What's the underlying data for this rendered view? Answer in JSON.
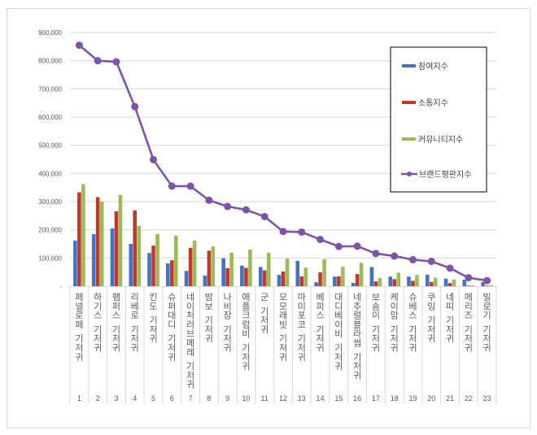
{
  "chart_data": {
    "type": "bar",
    "combo": "clustered bars with line overlay",
    "title": "",
    "xlabel": "",
    "ylabel": "",
    "ylim": [
      0,
      900000
    ],
    "yticks": [
      0,
      100000,
      200000,
      300000,
      400000,
      500000,
      600000,
      700000,
      800000,
      900000
    ],
    "ytick_labels": [
      "-",
      "100,000",
      "200,000",
      "300,000",
      "400,000",
      "500,000",
      "600,000",
      "700,000",
      "800,000",
      "900,000"
    ],
    "grid": true,
    "legend_position": "right-inside",
    "categories": [
      {
        "rank": "1",
        "name": "페넬로페 기저귀"
      },
      {
        "rank": "2",
        "name": "하기스 기저귀"
      },
      {
        "rank": "3",
        "name": "팸퍼스 기저귀"
      },
      {
        "rank": "4",
        "name": "리베로 기저귀"
      },
      {
        "rank": "5",
        "name": "킨도 기저귀"
      },
      {
        "rank": "6",
        "name": "슈퍼대디 기저귀"
      },
      {
        "rank": "7",
        "name": "네이처러브메레 기저귀"
      },
      {
        "rank": "8",
        "name": "밤보 기저귀"
      },
      {
        "rank": "9",
        "name": "나비잠 기저귀"
      },
      {
        "rank": "10",
        "name": "애플크럼비 기저귀"
      },
      {
        "rank": "11",
        "name": "군 기저귀"
      },
      {
        "rank": "12",
        "name": "모모래빗 기저귀"
      },
      {
        "rank": "13",
        "name": "마미포코 기저귀"
      },
      {
        "rank": "14",
        "name": "베피스 기저귀"
      },
      {
        "rank": "15",
        "name": "대디베이비 기저귀"
      },
      {
        "rank": "16",
        "name": "네추럴블라썸 기저귀"
      },
      {
        "rank": "17",
        "name": "보솜이 기저귀"
      },
      {
        "rank": "18",
        "name": "케이맘 기저귀"
      },
      {
        "rank": "19",
        "name": "슈베스 기저귀"
      },
      {
        "rank": "20",
        "name": "쿠잉 기저귀"
      },
      {
        "rank": "21",
        "name": "네띠 기저귀"
      },
      {
        "rank": "22",
        "name": "메리즈 기저귀"
      },
      {
        "rank": "23",
        "name": "빌로기 기저귀"
      }
    ],
    "series": [
      {
        "name": "참여지수",
        "type": "bar",
        "color": "#4472c4",
        "values": [
          162000,
          185000,
          205000,
          150000,
          118000,
          81000,
          54000,
          38000,
          99000,
          73000,
          68000,
          40000,
          90000,
          14000,
          34000,
          12000,
          68000,
          34000,
          34000,
          41000,
          27000,
          23000,
          15000
        ]
      },
      {
        "name": "소통지수",
        "type": "bar",
        "color": "#c0392b",
        "values": [
          333000,
          316000,
          266000,
          269000,
          144000,
          92000,
          136000,
          126000,
          64000,
          65000,
          56000,
          52000,
          35000,
          49000,
          35000,
          43000,
          17000,
          25000,
          19000,
          15000,
          11000,
          2000,
          2000
        ]
      },
      {
        "name": "커뮤니티지수",
        "type": "bar",
        "color": "#9bbb59",
        "values": [
          362000,
          300000,
          324000,
          214000,
          185000,
          179000,
          162000,
          141000,
          119000,
          130000,
          119000,
          98000,
          66000,
          96000,
          69000,
          83000,
          29000,
          48000,
          40000,
          30000,
          24000,
          3000,
          3000
        ]
      },
      {
        "name": "브랜드평판지수",
        "type": "line",
        "color": "#7030a0",
        "values": [
          855000,
          800000,
          796000,
          637000,
          449000,
          355000,
          355000,
          305000,
          283000,
          271000,
          247000,
          194000,
          192000,
          166000,
          141000,
          142000,
          116000,
          107000,
          94000,
          88000,
          64000,
          30000,
          20000
        ]
      }
    ]
  },
  "legend": {
    "items": [
      {
        "label": "참여지수",
        "color": "#4472c4",
        "kind": "bar"
      },
      {
        "label": "소통지수",
        "color": "#c0392b",
        "kind": "bar"
      },
      {
        "label": "커뮤니티지수",
        "color": "#9bbb59",
        "kind": "bar"
      },
      {
        "label": "브랜드평판지수",
        "color": "#7c55a6",
        "kind": "line"
      }
    ]
  }
}
